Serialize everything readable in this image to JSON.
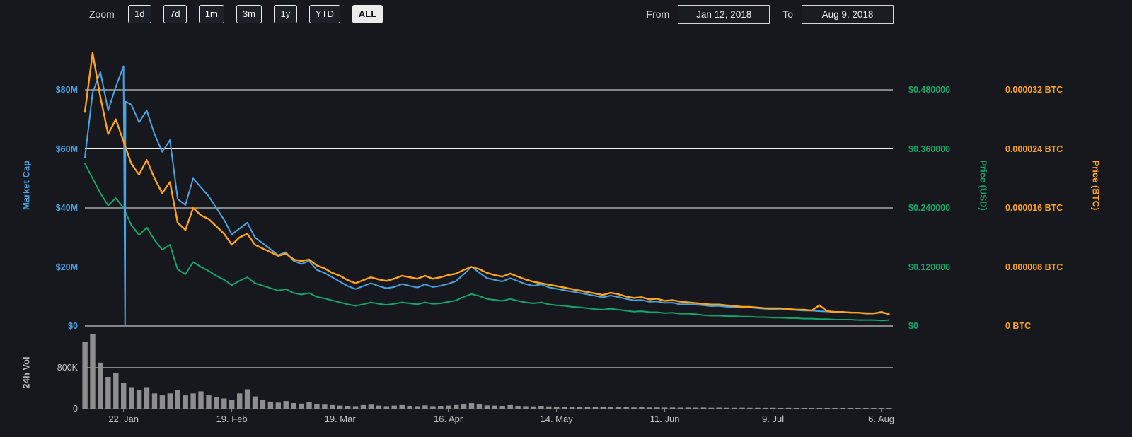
{
  "toolbar": {
    "zoom_label": "Zoom",
    "buttons": [
      {
        "label": "1d",
        "active": false
      },
      {
        "label": "7d",
        "active": false
      },
      {
        "label": "1m",
        "active": false
      },
      {
        "label": "3m",
        "active": false
      },
      {
        "label": "1y",
        "active": false
      },
      {
        "label": "YTD",
        "active": false
      },
      {
        "label": "ALL",
        "active": true
      }
    ],
    "from_label": "From",
    "from_value": "Jan 12, 2018",
    "to_label": "To",
    "to_value": "Aug 9, 2018"
  },
  "colors": {
    "background": "#16181d",
    "market_cap": "#4aa4e4",
    "price_usd": "#14a76a",
    "price_btc": "#ffa318",
    "volume": "#8e8e8e",
    "grid": "#f2f2f2",
    "axis_line": "#4a4e55",
    "muted_text": "#c6c6c6"
  },
  "chart_data": {
    "type": "line",
    "x_tick_labels": [
      "22. Jan",
      "19. Feb",
      "19. Mar",
      "16. Apr",
      "14. May",
      "11. Jun",
      "9. Jul",
      "6. Aug"
    ],
    "x_tick_days": [
      10,
      38,
      66,
      94,
      122,
      150,
      178,
      206
    ],
    "x_range_days": [
      0,
      209
    ],
    "sample_step_days": 2,
    "axes": {
      "market_cap": {
        "title": "Market Cap",
        "side": "left",
        "unit": "USD millions",
        "tick_interval": 20,
        "ylim": [
          0,
          93.6
        ],
        "ticks": [
          {
            "value": 80,
            "label": "$80M"
          },
          {
            "value": 60,
            "label": "$60M"
          },
          {
            "value": 40,
            "label": "$40M"
          },
          {
            "value": 20,
            "label": "$20M"
          },
          {
            "value": 0,
            "label": "$0"
          }
        ]
      },
      "price_usd": {
        "title": "Price (USD)",
        "side": "right",
        "unit": "USD",
        "tick_interval": 0.12,
        "ylim": [
          0,
          0.5616
        ],
        "ticks": [
          {
            "value": 0.48,
            "label": "$0.480000"
          },
          {
            "value": 0.36,
            "label": "$0.360000"
          },
          {
            "value": 0.24,
            "label": "$0.240000"
          },
          {
            "value": 0.12,
            "label": "$0.120000"
          },
          {
            "value": 0,
            "label": "$0"
          }
        ]
      },
      "price_btc": {
        "title": "Price (BTC)",
        "side": "right",
        "unit": "BTC",
        "tick_interval": 8e-06,
        "ylim": [
          0,
          3.74e-05
        ],
        "ticks": [
          {
            "value": 3.2e-05,
            "label": "0.000032 BTC"
          },
          {
            "value": 2.4e-05,
            "label": "0.000024 BTC"
          },
          {
            "value": 1.6e-05,
            "label": "0.000016 BTC"
          },
          {
            "value": 8e-06,
            "label": "0.000008 BTC"
          },
          {
            "value": 0,
            "label": "0 BTC"
          }
        ]
      },
      "volume": {
        "title": "24h Vol",
        "side": "left",
        "unit": "thousands",
        "tick_interval": 800,
        "ylim": [
          0,
          1500
        ],
        "ticks": [
          {
            "value": 800,
            "label": "800K"
          },
          {
            "value": 0,
            "label": "0"
          }
        ]
      }
    },
    "series": [
      {
        "name": "Market Cap",
        "axis": "market_cap",
        "style": "line",
        "values": [
          57,
          79,
          86,
          73,
          81,
          88,
          75,
          69,
          73,
          65,
          59,
          63,
          43,
          41,
          50,
          47,
          44,
          40,
          36,
          31,
          33,
          35,
          30,
          28,
          26,
          24,
          25,
          22,
          21,
          22,
          19,
          18,
          16.5,
          15,
          13.5,
          12.5,
          13.5,
          14.5,
          13.5,
          12.8,
          13.2,
          14.2,
          13.6,
          13,
          14.1,
          13.2,
          13.6,
          14.3,
          15.2,
          17.5,
          20.1,
          18.1,
          16.2,
          15.6,
          15.1,
          16.2,
          15.2,
          14.2,
          13.6,
          14.1,
          13.1,
          12.6,
          12.1,
          11.7,
          11.2,
          10.7,
          10.2,
          9.7,
          10.3,
          9.8,
          9.2,
          8.7,
          8.8,
          8.2,
          8.3,
          7.8,
          7.9,
          7.3,
          7.4,
          7.2,
          7,
          6.7,
          6.8,
          6.5,
          6.4,
          6.2,
          6.3,
          6,
          5.8,
          5.7,
          5.8,
          5.5,
          5.4,
          5.2,
          5.2,
          5,
          4.9,
          4.8,
          4.7,
          4.6,
          4.5,
          4.4,
          4.3,
          4.5,
          4.2
        ]
      },
      {
        "name": "Price (USD)",
        "axis": "price_usd",
        "style": "line",
        "values": [
          0.33,
          0.3,
          0.27,
          0.245,
          0.26,
          0.24,
          0.205,
          0.185,
          0.2,
          0.175,
          0.155,
          0.165,
          0.115,
          0.105,
          0.13,
          0.12,
          0.112,
          0.102,
          0.094,
          0.083,
          0.092,
          0.099,
          0.087,
          0.082,
          0.077,
          0.072,
          0.075,
          0.067,
          0.064,
          0.067,
          0.059,
          0.056,
          0.052,
          0.048,
          0.044,
          0.041,
          0.044,
          0.048,
          0.045,
          0.043,
          0.045,
          0.048,
          0.046,
          0.044,
          0.048,
          0.045,
          0.046,
          0.049,
          0.052,
          0.059,
          0.065,
          0.061,
          0.055,
          0.053,
          0.051,
          0.055,
          0.051,
          0.048,
          0.046,
          0.048,
          0.044,
          0.042,
          0.041,
          0.039,
          0.038,
          0.036,
          0.034,
          0.033,
          0.035,
          0.033,
          0.031,
          0.029,
          0.03,
          0.028,
          0.028,
          0.026,
          0.027,
          0.025,
          0.025,
          0.024,
          0.022,
          0.021,
          0.021,
          0.02,
          0.02,
          0.019,
          0.019,
          0.018,
          0.018,
          0.017,
          0.017,
          0.016,
          0.016,
          0.015,
          0.015,
          0.014,
          0.014,
          0.013,
          0.013,
          0.013,
          0.012,
          0.012,
          0.012,
          0.011,
          0.012
        ]
      },
      {
        "name": "Price (BTC)",
        "axis": "price_btc",
        "style": "line",
        "values": [
          2.9e-05,
          3.7e-05,
          3.1e-05,
          2.6e-05,
          2.8e-05,
          2.5e-05,
          2.2e-05,
          2.05e-05,
          2.25e-05,
          2e-05,
          1.8e-05,
          1.95e-05,
          1.4e-05,
          1.3e-05,
          1.6e-05,
          1.5e-05,
          1.45e-05,
          1.35e-05,
          1.25e-05,
          1.1e-05,
          1.2e-05,
          1.25e-05,
          1.1e-05,
          1.05e-05,
          1e-05,
          9.5e-06,
          9.8e-06,
          9e-06,
          8.8e-06,
          9e-06,
          8.2e-06,
          7.8e-06,
          7.2e-06,
          6.8e-06,
          6.2e-06,
          5.8e-06,
          6.2e-06,
          6.6e-06,
          6.3e-06,
          6.1e-06,
          6.4e-06,
          6.8e-06,
          6.6e-06,
          6.4e-06,
          6.8e-06,
          6.4e-06,
          6.6e-06,
          6.9e-06,
          7.1e-06,
          7.6e-06,
          8e-06,
          7.7e-06,
          7.2e-06,
          6.9e-06,
          6.7e-06,
          7.1e-06,
          6.7e-06,
          6.3e-06,
          6e-06,
          5.8e-06,
          5.6e-06,
          5.4e-06,
          5.2e-06,
          5e-06,
          4.8e-06,
          4.6e-06,
          4.4e-06,
          4.2e-06,
          4.5e-06,
          4.3e-06,
          4e-06,
          3.8e-06,
          3.9e-06,
          3.6e-06,
          3.7e-06,
          3.4e-06,
          3.5e-06,
          3.3e-06,
          3.2e-06,
          3.1e-06,
          3e-06,
          2.9e-06,
          2.9e-06,
          2.8e-06,
          2.7e-06,
          2.6e-06,
          2.6e-06,
          2.5e-06,
          2.4e-06,
          2.4e-06,
          2.4e-06,
          2.3e-06,
          2.2e-06,
          2.2e-06,
          2.1e-06,
          2.8e-06,
          2e-06,
          1.9e-06,
          1.9e-06,
          1.8e-06,
          1.8e-06,
          1.7e-06,
          1.7e-06,
          1.9e-06,
          1.6e-06
        ]
      },
      {
        "name": "24h Vol",
        "axis": "volume",
        "style": "column",
        "values": [
          1300,
          1450,
          900,
          620,
          700,
          500,
          420,
          360,
          420,
          300,
          260,
          300,
          360,
          260,
          300,
          340,
          260,
          230,
          200,
          170,
          300,
          380,
          240,
          170,
          140,
          120,
          150,
          110,
          100,
          130,
          90,
          80,
          70,
          60,
          55,
          50,
          70,
          80,
          60,
          50,
          60,
          70,
          55,
          50,
          65,
          50,
          55,
          60,
          70,
          90,
          110,
          85,
          65,
          60,
          55,
          70,
          55,
          50,
          45,
          55,
          45,
          40,
          38,
          40,
          35,
          33,
          30,
          28,
          35,
          30,
          28,
          25,
          28,
          24,
          25,
          22,
          24,
          20,
          22,
          20,
          22,
          18,
          20,
          18,
          17,
          18,
          16,
          17,
          15,
          16,
          14,
          15,
          13,
          14,
          12,
          14,
          11,
          12,
          10,
          11,
          10,
          10,
          9,
          10,
          9
        ]
      }
    ],
    "anomaly": {
      "series": "Market Cap",
      "points": [
        [
          10.4,
          0
        ],
        [
          10.5,
          76
        ]
      ]
    }
  }
}
